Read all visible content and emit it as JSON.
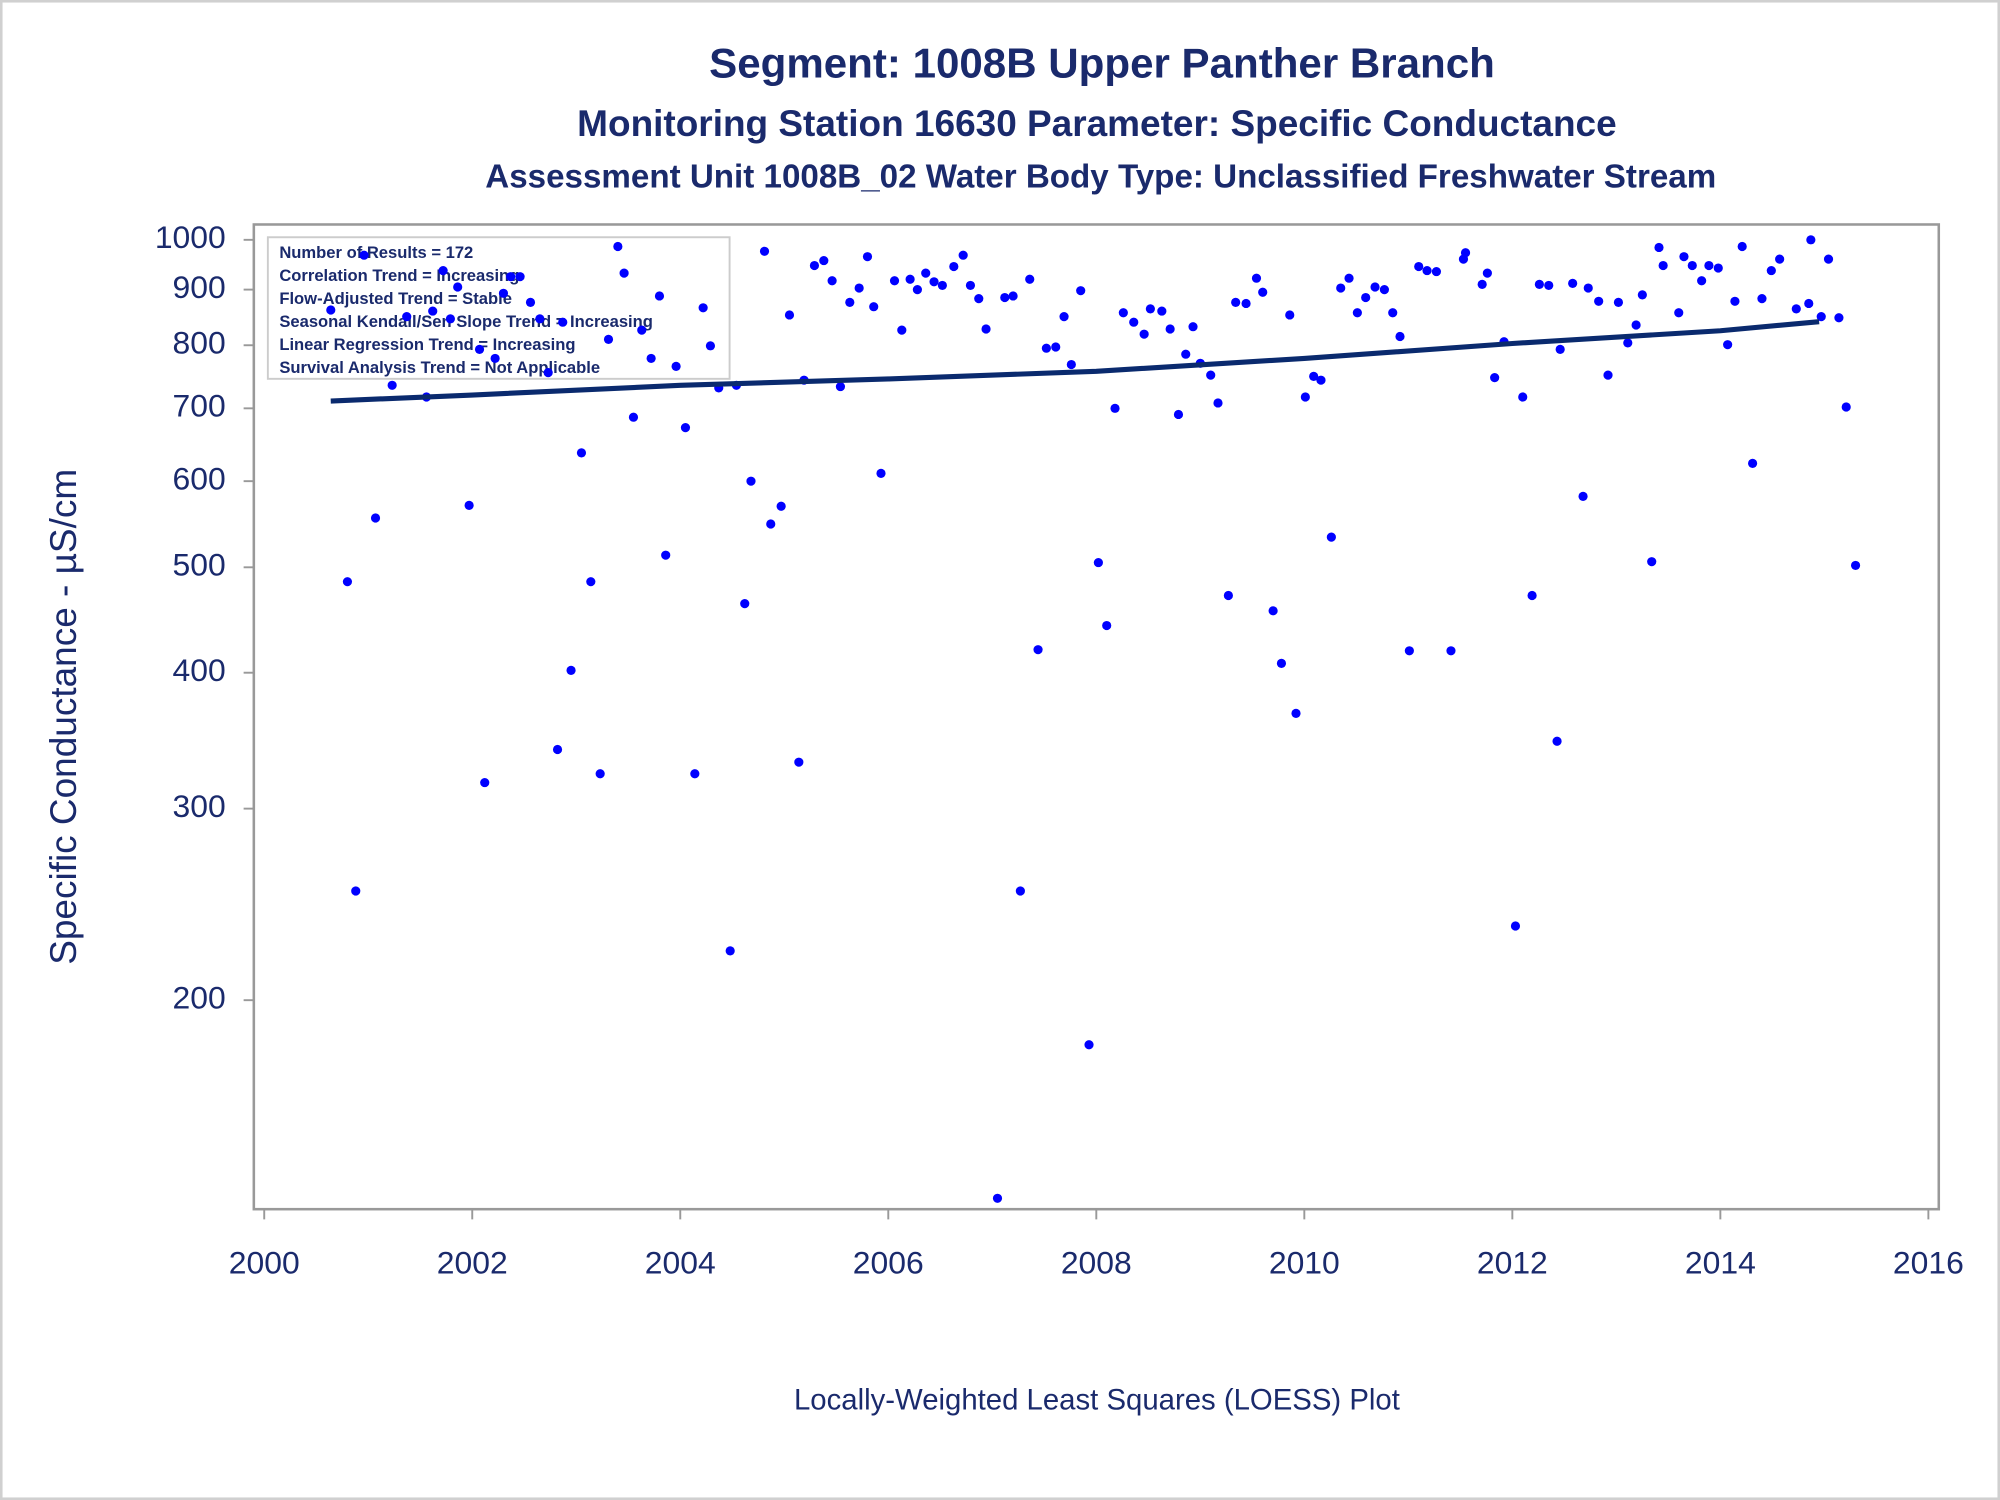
{
  "chart_data": {
    "type": "scatter",
    "title": "Segment: 1008B  Upper Panther Branch",
    "subtitles": [
      "Monitoring Station 16630 Parameter: Specific Conductance",
      "Assessment Unit 1008B_02   Water Body Type: Unclassified Freshwater Stream"
    ],
    "ylabel": "Specific Conductance -  µS/cm",
    "xlabel": "Locally-Weighted Least Squares (LOESS) Plot",
    "annotations": [
      "Number of Results = 172",
      "Correlation Trend = Increasing",
      "Flow-Adjusted Trend = Stable",
      "Seasonal Kendall/Sen Slope Trend = Increasing",
      "Linear Regression Trend = Increasing",
      "Survival Analysis Trend = Not Applicable"
    ],
    "ylog": true,
    "color": "#0000ff",
    "xlim": [
      1999.9,
      2016.1
    ],
    "ylim": [
      128.5,
      1033
    ],
    "xticks": [
      2000,
      2002,
      2004,
      2006,
      2008,
      2010,
      2012,
      2014,
      2016
    ],
    "yticks": [
      200,
      300,
      400,
      500,
      600,
      700,
      800,
      900,
      1000
    ],
    "x": [
      2000.64,
      2000.8,
      2000.88,
      2000.96,
      2001.07,
      2001.23,
      2001.37,
      2001.56,
      2001.62,
      2001.72,
      2001.79,
      2001.86,
      2001.97,
      2002.07,
      2002.12,
      2002.22,
      2002.3,
      2002.37,
      2002.46,
      2002.56,
      2002.65,
      2002.73,
      2002.82,
      2002.87,
      2002.95,
      2003.05,
      2003.14,
      2003.23,
      2003.31,
      2003.4,
      2003.46,
      2003.55,
      2003.63,
      2003.72,
      2003.8,
      2003.86,
      2003.96,
      2004.05,
      2004.14,
      2004.22,
      2004.29,
      2004.37,
      2004.48,
      2004.54,
      2004.62,
      2004.68,
      2004.81,
      2004.87,
      2004.97,
      2005.05,
      2005.14,
      2005.19,
      2005.29,
      2005.38,
      2005.46,
      2005.54,
      2005.63,
      2005.72,
      2005.8,
      2005.86,
      2005.93,
      2006.06,
      2006.13,
      2006.21,
      2006.28,
      2006.36,
      2006.44,
      2006.52,
      2006.63,
      2006.72,
      2006.79,
      2006.87,
      2006.94,
      2007.05,
      2007.12,
      2007.2,
      2007.27,
      2007.36,
      2007.44,
      2007.52,
      2007.61,
      2007.69,
      2007.76,
      2007.85,
      2007.93,
      2008.02,
      2008.1,
      2008.18,
      2008.26,
      2008.36,
      2008.46,
      2008.52,
      2008.63,
      2008.71,
      2008.79,
      2008.86,
      2008.93,
      2009.0,
      2009.1,
      2009.17,
      2009.27,
      2009.34,
      2009.44,
      2009.54,
      2009.6,
      2009.7,
      2009.78,
      2009.86,
      2009.92,
      2010.01,
      2010.09,
      2010.16,
      2010.26,
      2010.35,
      2010.43,
      2010.51,
      2010.59,
      2010.68,
      2010.77,
      2010.85,
      2010.92,
      2011.01,
      2011.1,
      2011.18,
      2011.27,
      2011.41,
      2011.53,
      2011.55,
      2011.71,
      2011.76,
      2011.83,
      2011.92,
      2012.03,
      2012.1,
      2012.19,
      2012.26,
      2012.35,
      2012.43,
      2012.46,
      2012.58,
      2012.68,
      2012.73,
      2012.83,
      2012.92,
      2013.02,
      2013.11,
      2013.19,
      2013.25,
      2013.34,
      2013.41,
      2013.45,
      2013.6,
      2013.65,
      2013.73,
      2013.82,
      2013.89,
      2013.98,
      2014.07,
      2014.14,
      2014.21,
      2014.31,
      2014.4,
      2014.49,
      2014.57,
      2014.73,
      2014.85,
      2014.87,
      2014.97,
      2015.04,
      2015.14,
      2015.21,
      2015.3
    ],
    "values": [
      862,
      485,
      252,
      968,
      555,
      735,
      850,
      717,
      860,
      937,
      846,
      905,
      570,
      793,
      317,
      778,
      893,
      925,
      925,
      876,
      846,
      755,
      340,
      840,
      402,
      637,
      485,
      323,
      810,
      986,
      932,
      687,
      826,
      778,
      888,
      513,
      765,
      672,
      323,
      866,
      799,
      731,
      222,
      735,
      463,
      600,
      976,
      548,
      569,
      853,
      331,
      743,
      947,
      957,
      917,
      733,
      876,
      903,
      965,
      868,
      610,
      917,
      826,
      920,
      900,
      932,
      915,
      908,
      945,
      968,
      908,
      883,
      828,
      131.5,
      885,
      888,
      252,
      920,
      420,
      795,
      797,
      850,
      768,
      898,
      182,
      505,
      442,
      700,
      857,
      840,
      819,
      864,
      860,
      828,
      691,
      785,
      832,
      770,
      751,
      708,
      471,
      876,
      874,
      922,
      895,
      456,
      408,
      853,
      367,
      717,
      749,
      743,
      533,
      903,
      922,
      857,
      885,
      905,
      900,
      857,
      815,
      419,
      945,
      937,
      935,
      419,
      960,
      973,
      910,
      932,
      747,
      806,
      234,
      717,
      471,
      910,
      908,
      346,
      793,
      912,
      581,
      903,
      878,
      751,
      876,
      804,
      835,
      890,
      506,
      984,
      947,
      857,
      965,
      947,
      917,
      947,
      942,
      801,
      878,
      986,
      623,
      883,
      937,
      960,
      864,
      874,
      1000,
      850,
      960,
      848,
      702,
      502
    ],
    "loess": {
      "color": "#0a2a6e",
      "x": [
        2000.64,
        2002,
        2004,
        2006,
        2008,
        2010,
        2012,
        2014,
        2014.95
      ],
      "values": [
        711,
        720,
        735,
        745,
        757,
        778,
        803,
        825,
        841
      ]
    }
  }
}
